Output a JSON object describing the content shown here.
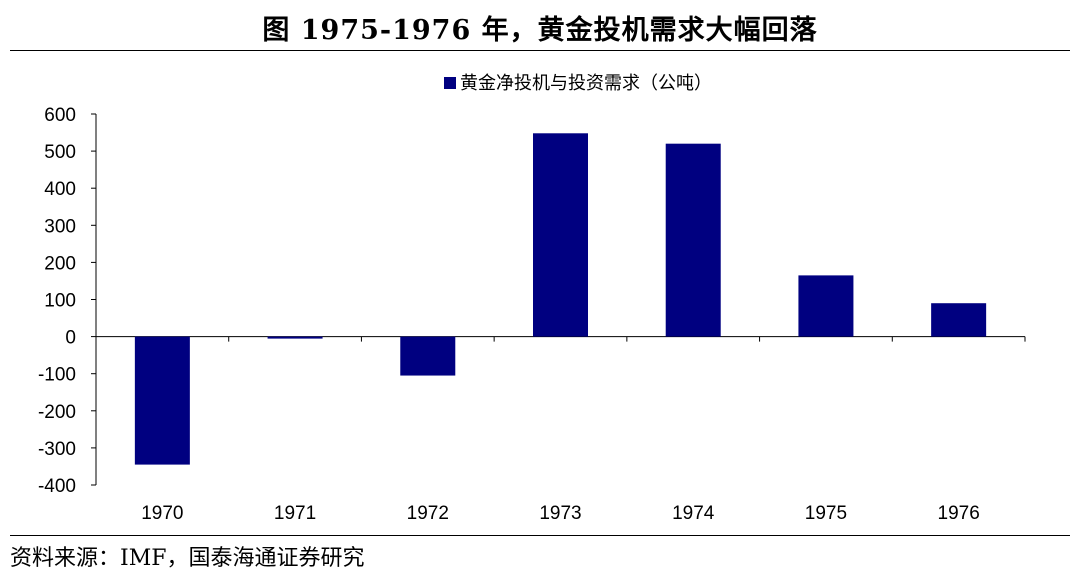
{
  "header": {
    "title": "图 1975-1976 年，黄金投机需求大幅回落"
  },
  "footer": {
    "source": "资料来源：IMF，国泰海通证券研究"
  },
  "colors": {
    "bar": "#000080",
    "axis": "#000000"
  },
  "chart_data": {
    "type": "bar",
    "title": "图 1975-1976 年，黄金投机需求大幅回落",
    "categories": [
      "1970",
      "1971",
      "1972",
      "1973",
      "1974",
      "1975",
      "1976"
    ],
    "series": [
      {
        "name": "黄金净投机与投资需求（公吨）",
        "values": [
          -345,
          -5,
          -105,
          548,
          520,
          165,
          90
        ]
      }
    ],
    "xlabel": "",
    "ylabel": "",
    "ylim": [
      -400,
      600
    ],
    "yticks": [
      -400,
      -300,
      -200,
      -100,
      0,
      100,
      200,
      300,
      400,
      500,
      600
    ],
    "grid": false,
    "legend_position": "top-right"
  }
}
